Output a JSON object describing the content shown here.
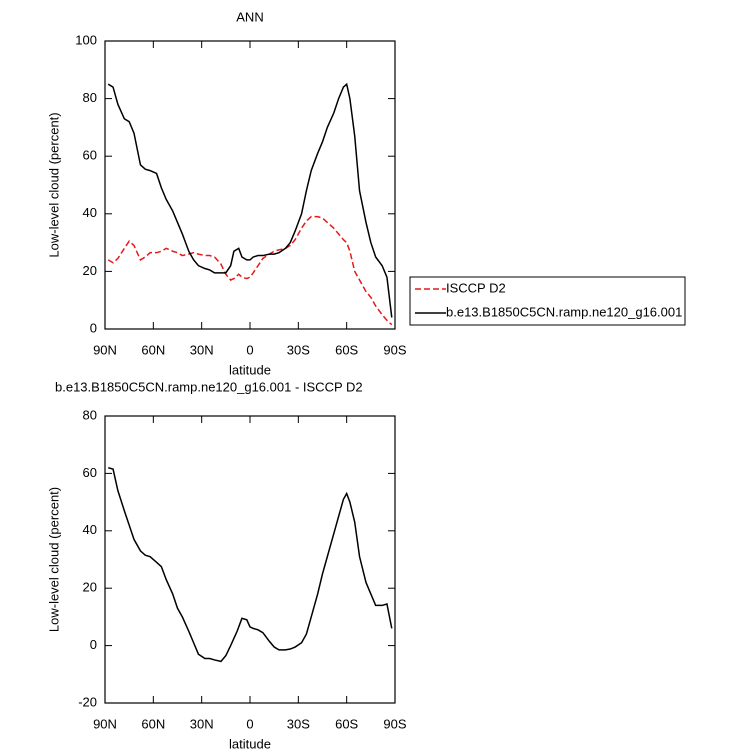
{
  "chart_data": [
    {
      "type": "line",
      "title": "ANN",
      "xlabel": "latitude",
      "ylabel": "Low-level cloud (percent)",
      "xlim": [
        90,
        -90
      ],
      "xticks": [
        {
          "value": 90,
          "label": "90N"
        },
        {
          "value": 60,
          "label": "60N"
        },
        {
          "value": 30,
          "label": "30N"
        },
        0,
        {
          "value": -30,
          "label": "30S"
        },
        {
          "value": -60,
          "label": "60S"
        },
        {
          "value": -90,
          "label": "90S"
        }
      ],
      "ylim": [
        0,
        100
      ],
      "yticks": [
        0,
        20,
        40,
        60,
        80,
        100
      ],
      "legend": "right",
      "x": [
        88,
        85,
        82,
        78,
        75,
        72,
        68,
        65,
        62,
        58,
        55,
        52,
        48,
        45,
        42,
        38,
        35,
        32,
        28,
        25,
        22,
        18,
        15,
        12,
        10,
        7,
        5,
        2,
        0,
        -2,
        -5,
        -8,
        -12,
        -15,
        -18,
        -22,
        -25,
        -28,
        -32,
        -35,
        -38,
        -42,
        -45,
        -48,
        -52,
        -55,
        -58,
        -60,
        -62,
        -65,
        -68,
        -72,
        -75,
        -78,
        -82,
        -85,
        -88
      ],
      "series": [
        {
          "name": "ISCCP D2",
          "color": "#e41a1c",
          "dash": true,
          "values": [
            24,
            23,
            24.5,
            28,
            30.5,
            29,
            24,
            25,
            26.5,
            26.5,
            27,
            28,
            27,
            26.5,
            25.5,
            26,
            26.5,
            26,
            25.5,
            25.5,
            25,
            22.5,
            19,
            17,
            17.5,
            19,
            18,
            17.5,
            18,
            19.5,
            22,
            24.5,
            26,
            27,
            27.5,
            28,
            29,
            31,
            35,
            37.5,
            39,
            39,
            38.5,
            37,
            35,
            33,
            31,
            30,
            27,
            20,
            17,
            13,
            11,
            8,
            5,
            3,
            1.5
          ]
        },
        {
          "name": "b.e13.B1850C5CN.ramp.ne120_g16.001",
          "color": "#000000",
          "dash": false,
          "values": [
            85,
            84,
            78,
            73,
            72,
            68,
            57,
            55.5,
            55,
            54,
            49,
            45,
            41,
            37,
            33,
            27,
            24,
            22,
            21,
            20.5,
            19.5,
            19.5,
            19.5,
            22,
            27,
            28,
            25,
            24,
            24,
            25,
            25.5,
            25.5,
            26,
            26,
            26.5,
            28,
            30,
            34,
            40,
            48,
            55,
            61,
            65,
            70,
            75,
            80,
            84,
            85,
            80,
            67,
            48,
            37,
            30,
            25,
            22,
            18,
            4
          ]
        }
      ]
    },
    {
      "type": "line",
      "title": "b.e13.B1850C5CN.ramp.ne120_g16.001 - ISCCP D2",
      "xlabel": "latitude",
      "ylabel": "Low-level cloud (percent)",
      "xlim": [
        90,
        -90
      ],
      "xticks": [
        {
          "value": 90,
          "label": "90N"
        },
        {
          "value": 60,
          "label": "60N"
        },
        {
          "value": 30,
          "label": "30N"
        },
        0,
        {
          "value": -30,
          "label": "30S"
        },
        {
          "value": -60,
          "label": "60S"
        },
        {
          "value": -90,
          "label": "90S"
        }
      ],
      "ylim": [
        -20,
        80
      ],
      "yticks": [
        -20,
        0,
        20,
        40,
        60,
        80
      ],
      "x": [
        88,
        85,
        82,
        78,
        75,
        72,
        68,
        65,
        62,
        58,
        55,
        52,
        48,
        45,
        42,
        38,
        35,
        32,
        28,
        25,
        22,
        18,
        15,
        12,
        8,
        5,
        2,
        0,
        -2,
        -5,
        -8,
        -12,
        -15,
        -18,
        -22,
        -25,
        -28,
        -32,
        -35,
        -38,
        -42,
        -45,
        -48,
        -52,
        -55,
        -58,
        -60,
        -62,
        -65,
        -68,
        -72,
        -75,
        -78,
        -82,
        -85,
        -88
      ],
      "series": [
        {
          "color": "#000000",
          "dash": false,
          "values": [
            62,
            61.5,
            54,
            47,
            42,
            37,
            33,
            31.5,
            31,
            29,
            27.5,
            23,
            18,
            13,
            10,
            5,
            1,
            -3,
            -4.5,
            -4.5,
            -5,
            -5.5,
            -3.5,
            0,
            5,
            9.5,
            9,
            6.5,
            6,
            5.5,
            4.5,
            1.5,
            -0.5,
            -1.5,
            -1.5,
            -1.2,
            -0.5,
            1,
            4,
            10,
            18,
            25,
            31,
            39,
            45,
            51,
            53,
            50,
            43,
            31,
            22,
            18,
            14,
            14,
            14.5,
            6
          ]
        }
      ]
    }
  ]
}
